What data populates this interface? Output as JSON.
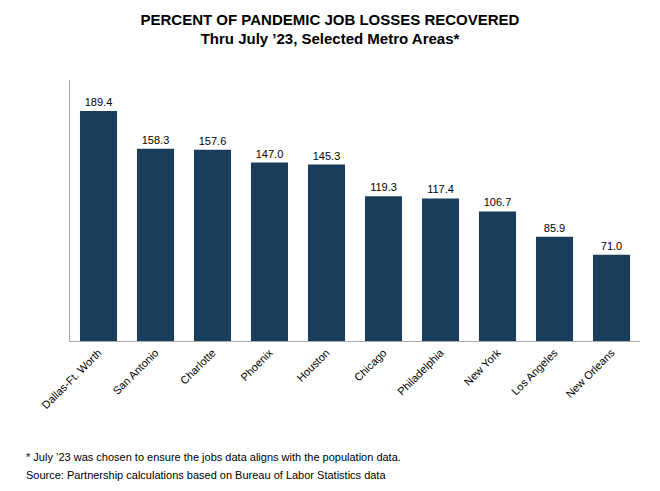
{
  "chart_data": {
    "type": "bar",
    "title": "PERCENT OF PANDEMIC JOB LOSSES RECOVERED",
    "subtitle": "Thru July ’23, Selected Metro Areas*",
    "categories": [
      "Dallas-Ft. Worth",
      "San Antonio",
      "Charlotte",
      "Phoenix",
      "Houston",
      "Chicago",
      "Philadelphia",
      "New York",
      "Los Angeles",
      "New Orleans"
    ],
    "values": [
      189.4,
      158.3,
      157.6,
      147.0,
      145.3,
      119.3,
      117.4,
      106.7,
      85.9,
      71.0
    ],
    "value_labels": [
      "189.4",
      "158.3",
      "157.6",
      "147.0",
      "145.3",
      "119.3",
      "117.4",
      "106.7",
      "85.9",
      "71.0"
    ],
    "color": "#1a3d5c",
    "ylim": [
      0,
      215
    ],
    "data_labels": true,
    "tick_labels": "x",
    "grid": false,
    "annotations": [
      "* July ’23 was chosen to ensure the jobs data aligns with the population data.",
      "Source: Partnership calculations based on Bureau of Labor Statistics data"
    ]
  }
}
